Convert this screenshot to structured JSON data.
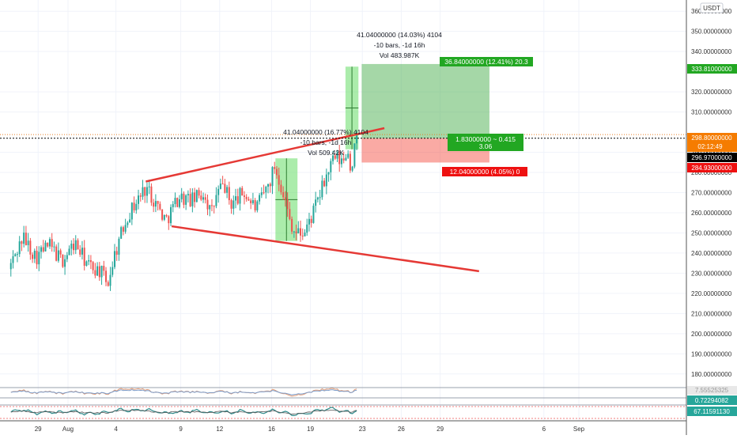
{
  "currency_badge": "USDT",
  "colors": {
    "up": "#26a69a",
    "down": "#ef5350",
    "trendline": "#e53935",
    "target_fill": "#4caf50",
    "stop_fill": "#f44336",
    "measure_fill": "#66dd66",
    "grid": "#f0f3fa",
    "axis_text": "#333333",
    "price_line": "#000000"
  },
  "price_axis": {
    "ticks": [
      "360.00000000",
      "350.00000000",
      "340.00000000",
      "320.00000000",
      "310.00000000",
      "290.00000000",
      "280.00000000",
      "270.00000000",
      "260.00000000",
      "250.00000000",
      "240.00000000",
      "230.00000000",
      "220.00000000",
      "210.00000000",
      "200.00000000",
      "190.00000000",
      "180.00000000"
    ],
    "tag_target": "333.81000000",
    "tag_current": "298.80000000",
    "tag_countdown": "02:12:49",
    "tag_entry": "296.97000000",
    "tag_stop": "284.93000000"
  },
  "time_axis": [
    "29",
    "Aug",
    "4",
    "9",
    "12",
    "16",
    "19",
    "23",
    "26",
    "29",
    "Sep",
    "6"
  ],
  "annotations": {
    "measure_top": [
      "41.04000000 (14.03%) 4104",
      "-10 bars, -1d 16h",
      "Vol 483.987K"
    ],
    "measure_mid": [
      "41.04000000 (16.77%) 4104",
      "-10 bars, -1d 16h",
      "Vol 509.42K"
    ],
    "target_label": "36.84000000 (12.41%) 20.3",
    "rr_label": [
      "1.83000000 ~ 0.415",
      "3.06"
    ],
    "stop_label": "12.04000000 (4.05%) 0"
  },
  "oscillators": [
    {
      "value_label": "7.55525325"
    },
    {
      "value_label": "0.72294082"
    },
    {
      "value_label": "67.11591130"
    }
  ],
  "chart_data": {
    "type": "candlestick",
    "y_axis": {
      "min": 176,
      "max": 364,
      "unit": "USDT"
    },
    "x_axis": {
      "start": "Jul 27",
      "end": "Sep 8",
      "bars_per_day": 6
    },
    "overlays": {
      "upper_trendline": [
        {
          "date": "Aug 6.3",
          "price": 275.5
        },
        {
          "date": "Aug 24.7",
          "price": 302
        }
      ],
      "lower_trendline": [
        {
          "date": "Aug 8.3",
          "price": 253.3
        },
        {
          "date": "Sep 1",
          "price": 231
        }
      ],
      "long_position": {
        "entry": 296.97,
        "target": 333.81,
        "stop": 284.93
      },
      "measure_boxes": [
        {
          "from": 246,
          "to": 287,
          "date_from": "Aug 16.3",
          "date_to": "Aug 18"
        },
        {
          "from": 291.5,
          "to": 332.5,
          "date_from": "Aug 21.7",
          "date_to": "Aug 22.7"
        }
      ]
    },
    "path": [
      [
        "Jul 26.9",
        232
      ],
      [
        "Jul 28",
        248
      ],
      [
        "Jul 29",
        238
      ],
      [
        "Jul 30",
        244
      ],
      [
        "Jul 31",
        236
      ],
      [
        "Aug 1",
        245
      ],
      [
        "Aug 2",
        234
      ],
      [
        "Aug 3",
        231
      ],
      [
        "Aug 3.5",
        224
      ],
      [
        "Aug 4",
        238
      ],
      [
        "Aug 5",
        258
      ],
      [
        "Aug 6",
        268
      ],
      [
        "Aug 6.5",
        273
      ],
      [
        "Aug 7.5",
        262
      ],
      [
        "Aug 8",
        256
      ],
      [
        "Aug 9",
        268
      ],
      [
        "Aug 10",
        266
      ],
      [
        "Aug 11",
        270
      ],
      [
        "Aug 11.5",
        259
      ],
      [
        "Aug 12",
        270
      ],
      [
        "Aug 12.5",
        274
      ],
      [
        "Aug 13",
        264
      ],
      [
        "Aug 14",
        270
      ],
      [
        "Aug 15",
        262
      ],
      [
        "Aug 16",
        275
      ],
      [
        "Aug 16.4",
        283
      ],
      [
        "Aug 17",
        272
      ],
      [
        "Aug 17.5",
        258
      ],
      [
        "Aug 18",
        250
      ],
      [
        "Aug 18.7",
        250
      ],
      [
        "Aug 19.5",
        262
      ],
      [
        "Aug 20.5",
        280
      ],
      [
        "Aug 21",
        287
      ],
      [
        "Aug 21.7",
        285
      ],
      [
        "Aug 22",
        292
      ],
      [
        "Aug 22.3",
        281
      ],
      [
        "Aug 22.7",
        297
      ]
    ]
  }
}
